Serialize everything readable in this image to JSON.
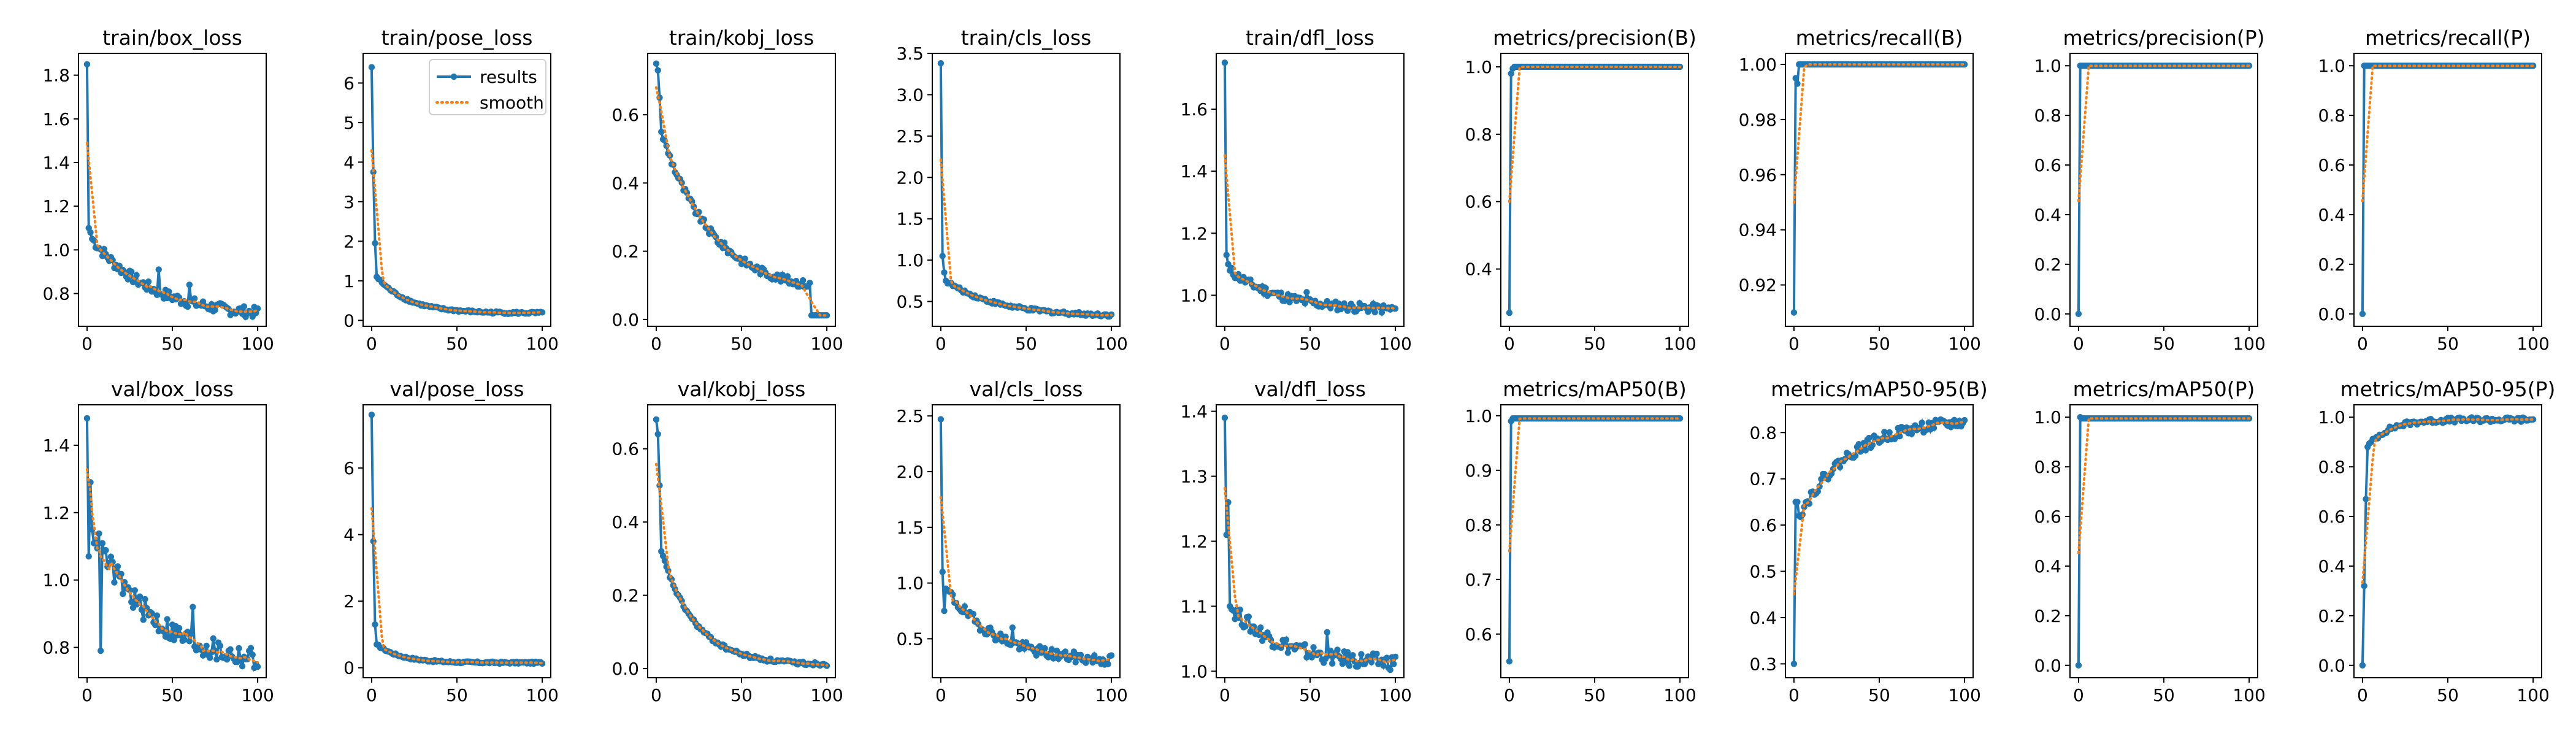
{
  "figure": {
    "legend": {
      "results": "results",
      "smooth": "smooth"
    },
    "colors": {
      "results": "#1f77b4",
      "smooth": "#ff7f0e",
      "axes": "#000000",
      "background": "#ffffff"
    },
    "legend_panel": "train/pose_loss",
    "legend_placement": "upper right"
  },
  "chart_data": [
    {
      "type": "line",
      "title": "train/box_loss",
      "xlim": [
        -5,
        105
      ],
      "ylim": [
        0.65,
        1.9
      ],
      "xticks": [
        0,
        50,
        100
      ],
      "yticks": [
        0.8,
        1.0,
        1.2,
        1.4,
        1.6,
        1.8
      ],
      "shape": {
        "kind": "decay",
        "start": 1.85,
        "early": [
          1.1,
          1.08,
          1.05
        ],
        "end": 0.69,
        "tau": 35,
        "noise": 0.025,
        "spikes": [
          [
            42,
            0.91
          ],
          [
            60,
            0.84
          ]
        ]
      }
    },
    {
      "type": "line",
      "title": "train/pose_loss",
      "xlim": [
        -5,
        105
      ],
      "ylim": [
        -0.15,
        6.75
      ],
      "xticks": [
        0,
        50,
        100
      ],
      "yticks": [
        0,
        1,
        2,
        3,
        4,
        5,
        6
      ],
      "shape": {
        "kind": "decay",
        "start": 6.4,
        "early": [
          3.75,
          1.95,
          1.1
        ],
        "end": 0.18,
        "tau": 18,
        "noise": 0.03,
        "spikes": []
      }
    },
    {
      "type": "line",
      "title": "train/kobj_loss",
      "xlim": [
        -5,
        105
      ],
      "ylim": [
        -0.02,
        0.78
      ],
      "xticks": [
        0,
        50,
        100
      ],
      "yticks": [
        0.0,
        0.2,
        0.4,
        0.6
      ],
      "shape": {
        "kind": "decay",
        "start": 0.75,
        "early": [
          0.73,
          0.65,
          0.55
        ],
        "end": 0.075,
        "tau": 30,
        "noise": 0.012,
        "spikes": [],
        "drop_at": 91,
        "drop_to": 0.012
      }
    },
    {
      "type": "line",
      "title": "train/cls_loss",
      "xlim": [
        -5,
        105
      ],
      "ylim": [
        0.2,
        3.5
      ],
      "xticks": [
        0,
        50,
        100
      ],
      "yticks": [
        0.5,
        1.0,
        1.5,
        2.0,
        2.5,
        3.0,
        3.5
      ],
      "shape": {
        "kind": "decay",
        "start": 3.38,
        "early": [
          1.05,
          0.85,
          0.75
        ],
        "end": 0.32,
        "tau": 30,
        "noise": 0.02,
        "spikes": []
      }
    },
    {
      "type": "line",
      "title": "train/dfl_loss",
      "xlim": [
        -5,
        105
      ],
      "ylim": [
        0.9,
        1.78
      ],
      "xticks": [
        0,
        50,
        100
      ],
      "yticks": [
        1.0,
        1.2,
        1.4,
        1.6
      ],
      "shape": {
        "kind": "decay",
        "start": 1.75,
        "early": [
          1.13,
          1.1,
          1.08
        ],
        "end": 0.95,
        "tau": 30,
        "noise": 0.015,
        "spikes": [
          [
            48,
            1.01
          ]
        ]
      }
    },
    {
      "type": "line",
      "title": "metrics/precision(B)",
      "xlim": [
        -5,
        105
      ],
      "ylim": [
        0.23,
        1.04
      ],
      "xticks": [
        0,
        50,
        100
      ],
      "yticks": [
        0.4,
        0.6,
        0.8,
        1.0
      ],
      "shape": {
        "kind": "rise",
        "start": 0.27,
        "early": [
          0.98,
          0.995,
          1.0
        ],
        "end": 1.0,
        "tau": 2,
        "noise": 0.0,
        "spikes": []
      }
    },
    {
      "type": "line",
      "title": "metrics/recall(B)",
      "xlim": [
        -5,
        105
      ],
      "ylim": [
        0.905,
        1.004
      ],
      "xticks": [
        0,
        50,
        100
      ],
      "yticks": [
        0.92,
        0.94,
        0.96,
        0.98,
        1.0
      ],
      "shape": {
        "kind": "rise",
        "start": 0.91,
        "early": [
          0.995,
          0.993,
          1.0
        ],
        "end": 1.0,
        "tau": 2,
        "noise": 0.0,
        "spikes": []
      }
    },
    {
      "type": "line",
      "title": "metrics/precision(P)",
      "xlim": [
        -5,
        105
      ],
      "ylim": [
        -0.05,
        1.05
      ],
      "xticks": [
        0,
        50,
        100
      ],
      "yticks": [
        0.0,
        0.2,
        0.4,
        0.6,
        0.8,
        1.0
      ],
      "shape": {
        "kind": "rise",
        "start": 0.0,
        "early": [
          1.0,
          1.0,
          1.0
        ],
        "end": 1.0,
        "tau": 2,
        "noise": 0.0,
        "spikes": []
      }
    },
    {
      "type": "line",
      "title": "metrics/recall(P)",
      "xlim": [
        -5,
        105
      ],
      "ylim": [
        -0.05,
        1.05
      ],
      "xticks": [
        0,
        50,
        100
      ],
      "yticks": [
        0.0,
        0.2,
        0.4,
        0.6,
        0.8,
        1.0
      ],
      "shape": {
        "kind": "rise",
        "start": 0.0,
        "early": [
          1.0,
          1.0,
          1.0
        ],
        "end": 1.0,
        "tau": 2,
        "noise": 0.0,
        "spikes": []
      }
    },
    {
      "type": "line",
      "title": "val/box_loss",
      "xlim": [
        -5,
        105
      ],
      "ylim": [
        0.71,
        1.52
      ],
      "xticks": [
        0,
        50,
        100
      ],
      "yticks": [
        0.8,
        1.0,
        1.2,
        1.4
      ],
      "shape": {
        "kind": "decay",
        "start": 1.48,
        "early": [
          1.07,
          1.29,
          1.15
        ],
        "end": 0.74,
        "tau": 35,
        "noise": 0.035,
        "spikes": [
          [
            8,
            0.79
          ],
          [
            62,
            0.92
          ]
        ]
      }
    },
    {
      "type": "line",
      "title": "val/pose_loss",
      "xlim": [
        -5,
        105
      ],
      "ylim": [
        -0.3,
        7.9
      ],
      "xticks": [
        0,
        50,
        100
      ],
      "yticks": [
        0,
        2,
        4,
        6
      ],
      "shape": {
        "kind": "decay",
        "start": 7.6,
        "early": [
          3.8,
          1.3,
          0.7
        ],
        "end": 0.15,
        "tau": 14,
        "noise": 0.03,
        "spikes": []
      }
    },
    {
      "type": "line",
      "title": "val/kobj_loss",
      "xlim": [
        -5,
        105
      ],
      "ylim": [
        -0.025,
        0.72
      ],
      "xticks": [
        0,
        50,
        100
      ],
      "yticks": [
        0.0,
        0.2,
        0.4,
        0.6
      ],
      "shape": {
        "kind": "decay",
        "start": 0.68,
        "early": [
          0.64,
          0.5,
          0.32
        ],
        "end": 0.01,
        "tau": 20,
        "noise": 0.005,
        "spikes": []
      }
    },
    {
      "type": "line",
      "title": "val/cls_loss",
      "xlim": [
        -5,
        105
      ],
      "ylim": [
        0.15,
        2.6
      ],
      "xticks": [
        0,
        50,
        100
      ],
      "yticks": [
        0.5,
        1.0,
        1.5,
        2.0,
        2.5
      ],
      "shape": {
        "kind": "decay",
        "start": 2.47,
        "early": [
          1.1,
          0.75,
          0.95
        ],
        "end": 0.28,
        "tau": 30,
        "noise": 0.05,
        "spikes": [
          [
            42,
            0.6
          ]
        ]
      }
    },
    {
      "type": "line",
      "title": "val/dfl_loss",
      "xlim": [
        -5,
        105
      ],
      "ylim": [
        0.99,
        1.41
      ],
      "xticks": [
        0,
        50,
        100
      ],
      "yticks": [
        1.0,
        1.1,
        1.2,
        1.3,
        1.4
      ],
      "shape": {
        "kind": "decay",
        "start": 1.39,
        "early": [
          1.21,
          1.26,
          1.1
        ],
        "end": 1.01,
        "tau": 30,
        "noise": 0.012,
        "spikes": [
          [
            60,
            1.06
          ]
        ]
      }
    },
    {
      "type": "line",
      "title": "metrics/mAP50(B)",
      "xlim": [
        -5,
        105
      ],
      "ylim": [
        0.52,
        1.02
      ],
      "xticks": [
        0,
        50,
        100
      ],
      "yticks": [
        0.6,
        0.7,
        0.8,
        0.9,
        1.0
      ],
      "shape": {
        "kind": "rise",
        "start": 0.55,
        "early": [
          0.99,
          0.995,
          0.995
        ],
        "end": 0.995,
        "tau": 2,
        "noise": 0.0,
        "spikes": []
      }
    },
    {
      "type": "line",
      "title": "metrics/mAP50-95(B)",
      "xlim": [
        -5,
        105
      ],
      "ylim": [
        0.27,
        0.86
      ],
      "xticks": [
        0,
        50,
        100
      ],
      "yticks": [
        0.3,
        0.4,
        0.5,
        0.6,
        0.7,
        0.8
      ],
      "shape": {
        "kind": "rise",
        "start": 0.3,
        "early": [
          0.65,
          0.65,
          0.62
        ],
        "end": 0.83,
        "tau": 30,
        "noise": 0.012,
        "spikes": []
      }
    },
    {
      "type": "line",
      "title": "metrics/mAP50(P)",
      "xlim": [
        -5,
        105
      ],
      "ylim": [
        -0.05,
        1.05
      ],
      "xticks": [
        0,
        50,
        100
      ],
      "yticks": [
        0.0,
        0.2,
        0.4,
        0.6,
        0.8,
        1.0
      ],
      "shape": {
        "kind": "rise",
        "start": 0.0,
        "early": [
          1.0,
          0.995,
          0.995
        ],
        "end": 0.995,
        "tau": 2,
        "noise": 0.0,
        "spikes": []
      }
    },
    {
      "type": "line",
      "title": "metrics/mAP50-95(P)",
      "xlim": [
        -5,
        105
      ],
      "ylim": [
        -0.05,
        1.05
      ],
      "xticks": [
        0,
        50,
        100
      ],
      "yticks": [
        0.0,
        0.2,
        0.4,
        0.6,
        0.8,
        1.0
      ],
      "shape": {
        "kind": "rise",
        "start": 0.0,
        "early": [
          0.32,
          0.67,
          0.88
        ],
        "end": 0.99,
        "tau": 12,
        "noise": 0.01,
        "spikes": []
      }
    }
  ]
}
